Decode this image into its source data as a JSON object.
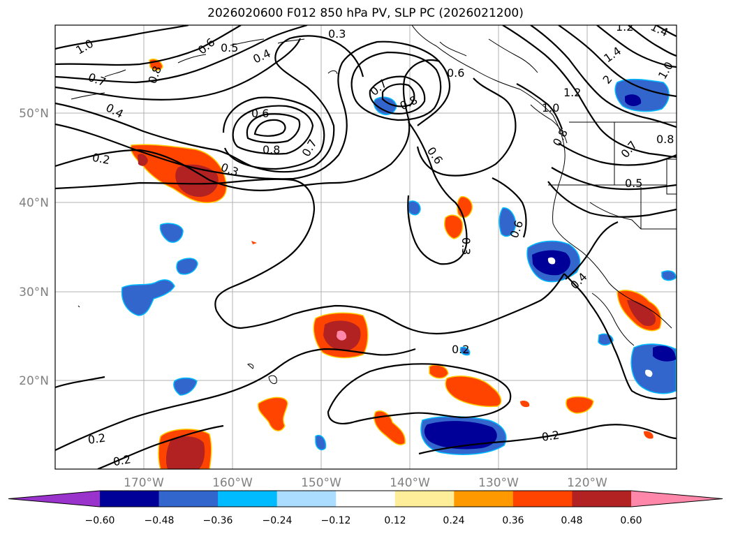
{
  "title": "2026020600 F012 850 hPa PV, SLP PC (2026021200)",
  "map": {
    "lat_ticks": [
      "50°N",
      "40°N",
      "30°N",
      "20°N"
    ],
    "lon_ticks": [
      "170°W",
      "160°W",
      "150°W",
      "140°W",
      "130°W",
      "120°W"
    ],
    "contour_labels": [
      "1.0",
      "0.6",
      "0.5",
      "0.4",
      "0.3",
      "0.8",
      "0.7",
      "0.4",
      "0.6",
      "0.8",
      "0.7",
      "0.6",
      "0.8",
      "0.7",
      "0.6",
      "1.4",
      "1.2",
      "2",
      "1.4",
      "1.0",
      "1.2",
      "1.0",
      "0.8",
      "0.8",
      "0.7",
      "0.5",
      "0.2",
      "0.3",
      "0.6",
      "0.3",
      "0.4",
      "0.2",
      "0.2",
      "0.2",
      "0.2"
    ]
  },
  "colorbar": {
    "ticks": [
      "−0.60",
      "−0.48",
      "−0.36",
      "−0.24",
      "−0.12",
      "0.12",
      "0.24",
      "0.36",
      "0.48",
      "0.60"
    ],
    "colors": [
      "#9933cc",
      "#000099",
      "#3366cc",
      "#00bbff",
      "#aaddff",
      "#ffffff",
      "#ffee99",
      "#ff9900",
      "#ff4400",
      "#b22222",
      "#ff88aa"
    ]
  }
}
